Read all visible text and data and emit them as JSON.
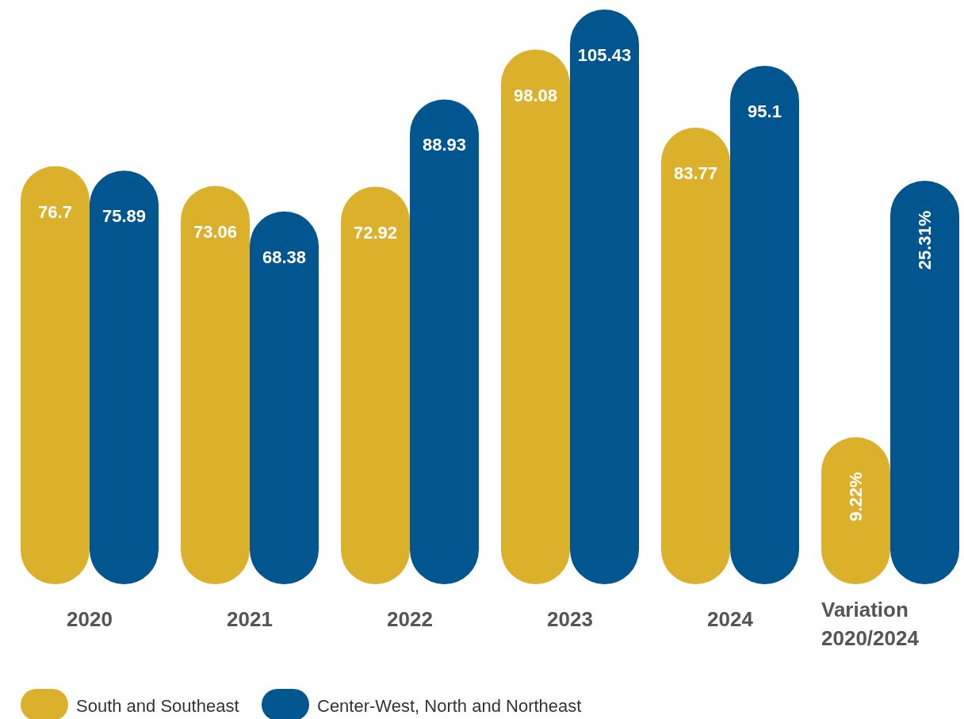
{
  "chart_data": [
    {
      "type": "bar",
      "categories": [
        "2020",
        "2021",
        "2022",
        "2023",
        "2024"
      ],
      "series": [
        {
          "name": "South and Southeast",
          "color": "#dbb02a",
          "values": [
            76.7,
            73.06,
            72.92,
            98.08,
            83.77
          ]
        },
        {
          "name": "Center-West, North and Northeast",
          "color": "#02568f",
          "values": [
            75.89,
            68.38,
            88.93,
            105.43,
            95.1
          ]
        }
      ],
      "data_labels": true,
      "legend": "bottom"
    },
    {
      "type": "bar",
      "categories": [
        "Variation 2020/2024"
      ],
      "series": [
        {
          "color": "#dbb02a",
          "values": [
            9.22
          ],
          "value_labels": [
            "9.22%"
          ]
        },
        {
          "color": "#02568f",
          "values": [
            25.31
          ],
          "value_labels": [
            "25.31%"
          ]
        }
      ]
    }
  ]
}
